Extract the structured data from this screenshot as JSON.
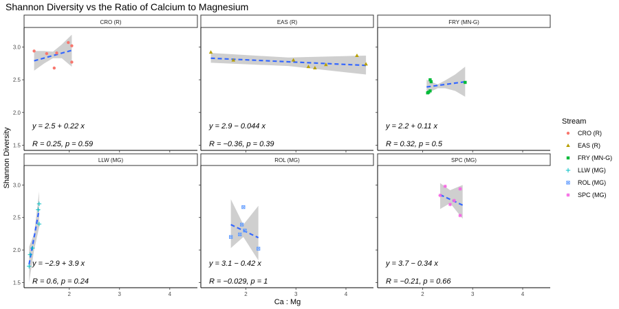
{
  "chart_data": {
    "type": "scatter",
    "title": "Shannon Diversity vs the Ratio of Calcium to Magnesium",
    "xlabel": "Ca : Mg",
    "ylabel": "Shannon Diversity",
    "xlim": [
      1.1,
      4.55
    ],
    "ylim": [
      1.42,
      3.3
    ],
    "x_ticks": [
      "2",
      "3",
      "4"
    ],
    "y_ticks": [
      "1.5",
      "2.0",
      "2.5",
      "3.0"
    ],
    "legend": {
      "title": "Stream",
      "position": "right"
    },
    "panels": [
      {
        "name": "CRO (R)",
        "color": "#F8766D",
        "shape": "circle",
        "x": [
          1.3,
          1.55,
          1.75,
          1.98,
          2.05,
          2.05,
          1.7
        ],
        "y": [
          2.94,
          2.9,
          2.91,
          3.07,
          3.02,
          2.77,
          2.68
        ],
        "fit_x": [
          1.3,
          2.05
        ],
        "fit_y": [
          2.79,
          2.95
        ],
        "ci_x": [
          1.3,
          1.5,
          1.675,
          1.85,
          2.05
        ],
        "ci_lo": [
          2.64,
          2.75,
          2.83,
          2.83,
          2.7
        ],
        "ci_hi": [
          2.94,
          2.94,
          2.93,
          3.04,
          3.19
        ],
        "equation": "y = 2.5 + 0.22 x",
        "stats": "R = 0.25, p = 0.59"
      },
      {
        "name": "EAS (R)",
        "color": "#B79F00",
        "shape": "triangle",
        "x": [
          1.3,
          1.75,
          2.95,
          3.25,
          3.38,
          3.6,
          4.22,
          4.4
        ],
        "y": [
          2.92,
          2.8,
          2.8,
          2.7,
          2.68,
          2.73,
          2.87,
          2.74
        ],
        "fit_x": [
          1.3,
          4.4
        ],
        "fit_y": [
          2.83,
          2.72
        ],
        "ci_x": [
          1.3,
          2.85,
          4.4
        ],
        "ci_lo": [
          2.76,
          2.71,
          2.58
        ],
        "ci_hi": [
          2.91,
          2.84,
          2.87
        ],
        "equation": "y = 2.9 − 0.044 x",
        "stats": "R = −0.36, p = 0.39"
      },
      {
        "name": "FRY (MN-G)",
        "color": "#00BA38",
        "shape": "square",
        "x": [
          2.1,
          2.15,
          2.15,
          2.17,
          2.12,
          2.85
        ],
        "y": [
          2.3,
          2.33,
          2.5,
          2.47,
          2.31,
          2.46
        ],
        "fit_x": [
          2.08,
          2.85
        ],
        "fit_y": [
          2.39,
          2.47
        ],
        "ci_x": [
          2.08,
          2.3,
          2.45,
          2.65,
          2.85
        ],
        "ci_lo": [
          2.29,
          2.37,
          2.37,
          2.33,
          2.24
        ],
        "ci_hi": [
          2.5,
          2.43,
          2.49,
          2.58,
          2.7
        ],
        "equation": "y = 2.2 + 0.11 x",
        "stats": "R = 0.32, p = 0.5"
      },
      {
        "name": "LLW (MG)",
        "color": "#00BFC4",
        "shape": "plus",
        "x": [
          1.22,
          1.27,
          1.38,
          1.4,
          1.4,
          1.2
        ],
        "y": [
          1.93,
          2.03,
          2.62,
          2.71,
          2.4,
          1.75
        ],
        "fit_x": [
          1.2,
          1.4
        ],
        "fit_y": [
          1.78,
          2.62
        ],
        "ci_x": [
          1.2,
          1.3,
          1.4
        ],
        "ci_lo": [
          1.5,
          2.0,
          2.35
        ],
        "ci_hi": [
          2.05,
          2.25,
          2.9
        ],
        "equation": "y = −2.9 + 3.9 x",
        "stats": "R = 0.6, p = 0.24"
      },
      {
        "name": "ROL (MG)",
        "color": "#619CFF",
        "shape": "boxx",
        "x": [
          1.7,
          1.88,
          1.92,
          1.95,
          1.98,
          2.25
        ],
        "y": [
          2.2,
          2.24,
          2.39,
          2.66,
          2.3,
          2.02
        ],
        "fit_x": [
          1.7,
          2.25
        ],
        "fit_y": [
          2.39,
          2.19
        ],
        "ci_x": [
          1.7,
          1.95,
          2.25
        ],
        "ci_lo": [
          2.03,
          2.2,
          1.84
        ],
        "ci_hi": [
          2.78,
          2.39,
          2.68
        ],
        "equation": "y = 3.1 − 0.42 x",
        "stats": "R = −0.029, p = 1"
      },
      {
        "name": "SPC (MG)",
        "color": "#F564E3",
        "shape": "asterisk",
        "x": [
          2.35,
          2.45,
          2.55,
          2.63,
          2.75,
          2.75
        ],
        "y": [
          2.84,
          2.98,
          2.7,
          2.76,
          2.94,
          2.53
        ],
        "fit_x": [
          2.35,
          2.8
        ],
        "fit_y": [
          2.85,
          2.69
        ],
        "ci_x": [
          2.35,
          2.55,
          2.8
        ],
        "ci_lo": [
          2.63,
          2.72,
          2.48
        ],
        "ci_hi": [
          3.03,
          2.92,
          3.0
        ],
        "equation": "y = 3.7 − 0.34 x",
        "stats": "R = −0.21, p = 0.66"
      }
    ]
  }
}
